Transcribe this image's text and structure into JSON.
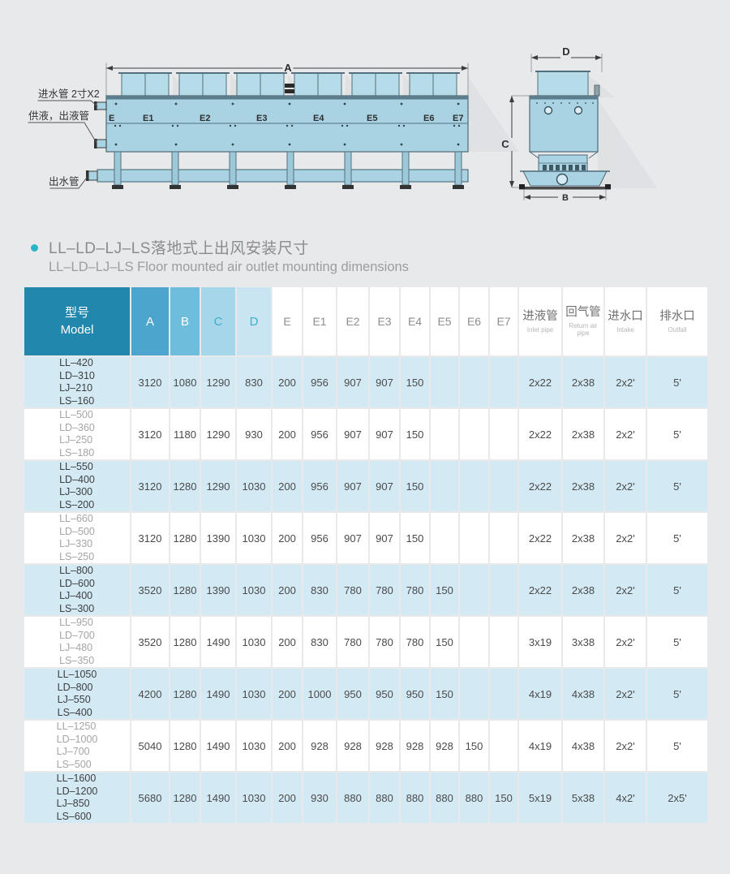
{
  "colors": {
    "page_background": "#e8e9eb",
    "accent_teal": "#2ab3c8",
    "header_model_bg": "#2187ad",
    "header_a_bg": "#4ba5cc",
    "header_b_bg": "#6ebddd",
    "header_c_bg": "#a6d6e9",
    "header_d_bg": "#c9e5f2",
    "row_blue_bg": "#d3eaf5",
    "drawing_fill": "#a9d3e2"
  },
  "drawing": {
    "labels": {
      "dim_a": "A",
      "dim_b": "B",
      "dim_c": "C",
      "dim_d": "D",
      "inlet_water_pipe": "进水管 2寸X2",
      "supply_outlet_pipe": "供液，出液管",
      "outlet_water_pipe": "出水管",
      "segments": [
        "E",
        "E1",
        "E2",
        "E3",
        "E4",
        "E5",
        "E6",
        "E7"
      ]
    }
  },
  "title": {
    "zh": "LL–LD–LJ–LS落地式上出风安装尺寸",
    "en": "LL–LD–LJ–LS  Floor mounted air outlet mounting dimensions"
  },
  "table": {
    "headers": {
      "model_zh": "型号",
      "model_en": "Model",
      "dims": [
        "A",
        "B",
        "C",
        "D"
      ],
      "e_cols": [
        "E",
        "E1",
        "E2",
        "E3",
        "E4",
        "E5",
        "E6",
        "E7"
      ],
      "pipes": [
        {
          "zh": "进液管",
          "en": "Inlet pipe"
        },
        {
          "zh": "回气管",
          "en": "Return air pipe"
        },
        {
          "zh": "进水口",
          "en": "Intake"
        },
        {
          "zh": "排水口",
          "en": "Outfall"
        }
      ]
    },
    "rows": [
      {
        "models": [
          "LL–420",
          "LD–310",
          "LJ–210",
          "LS–160"
        ],
        "values": [
          "3120",
          "1080",
          "1290",
          "830",
          "200",
          "956",
          "907",
          "907",
          "150",
          "",
          "",
          "",
          "2x22",
          "2x38",
          "2x2'",
          "5'"
        ]
      },
      {
        "models": [
          "LL–500",
          "LD–360",
          "LJ–250",
          "LS–180"
        ],
        "values": [
          "3120",
          "1180",
          "1290",
          "930",
          "200",
          "956",
          "907",
          "907",
          "150",
          "",
          "",
          "",
          "2x22",
          "2x38",
          "2x2'",
          "5'"
        ]
      },
      {
        "models": [
          "LL–550",
          "LD–400",
          "LJ–300",
          "LS–200"
        ],
        "values": [
          "3120",
          "1280",
          "1290",
          "1030",
          "200",
          "956",
          "907",
          "907",
          "150",
          "",
          "",
          "",
          "2x22",
          "2x38",
          "2x2'",
          "5'"
        ]
      },
      {
        "models": [
          "LL–660",
          "LD–500",
          "LJ–330",
          "LS–250"
        ],
        "values": [
          "3120",
          "1280",
          "1390",
          "1030",
          "200",
          "956",
          "907",
          "907",
          "150",
          "",
          "",
          "",
          "2x22",
          "2x38",
          "2x2'",
          "5'"
        ]
      },
      {
        "models": [
          "LL–800",
          "LD–600",
          "LJ–400",
          "LS–300"
        ],
        "values": [
          "3520",
          "1280",
          "1390",
          "1030",
          "200",
          "830",
          "780",
          "780",
          "780",
          "150",
          "",
          "",
          "2x22",
          "2x38",
          "2x2'",
          "5'"
        ]
      },
      {
        "models": [
          "LL–950",
          "LD–700",
          "LJ–480",
          "LS–350"
        ],
        "values": [
          "3520",
          "1280",
          "1490",
          "1030",
          "200",
          "830",
          "780",
          "780",
          "780",
          "150",
          "",
          "",
          "3x19",
          "3x38",
          "2x2'",
          "5'"
        ]
      },
      {
        "models": [
          "LL–1050",
          "LD–800",
          "LJ–550",
          "LS–400"
        ],
        "values": [
          "4200",
          "1280",
          "1490",
          "1030",
          "200",
          "1000",
          "950",
          "950",
          "950",
          "150",
          "",
          "",
          "4x19",
          "4x38",
          "2x2'",
          "5'"
        ]
      },
      {
        "models": [
          "LL–1250",
          "LD–1000",
          "LJ–700",
          "LS–500"
        ],
        "values": [
          "5040",
          "1280",
          "1490",
          "1030",
          "200",
          "928",
          "928",
          "928",
          "928",
          "928",
          "150",
          "",
          "4x19",
          "4x38",
          "2x2'",
          "5'"
        ]
      },
      {
        "models": [
          "LL–1600",
          "LD–1200",
          "LJ–850",
          "LS–600"
        ],
        "values": [
          "5680",
          "1280",
          "1490",
          "1030",
          "200",
          "930",
          "880",
          "880",
          "880",
          "880",
          "880",
          "150",
          "5x19",
          "5x38",
          "4x2'",
          "2x5'"
        ]
      }
    ]
  }
}
